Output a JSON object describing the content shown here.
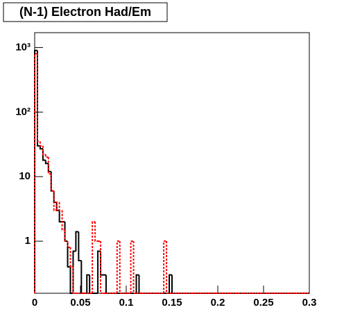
{
  "chart_data": {
    "type": "histogram",
    "title": "(N-1) Electron Had/Em",
    "log_y": true,
    "bins": [
      0,
      0.003,
      0.006,
      0.009,
      0.012,
      0.015,
      0.018,
      0.021,
      0.024,
      0.027,
      0.03,
      0.033,
      0.036,
      0.039,
      0.042,
      0.045,
      0.048,
      0.051,
      0.054,
      0.057,
      0.06,
      0.063,
      0.066,
      0.069,
      0.072,
      0.075,
      0.078,
      0.081,
      0.084,
      0.087,
      0.09,
      0.093,
      0.096,
      0.099,
      0.102,
      0.105,
      0.108,
      0.111,
      0.114,
      0.117,
      0.12,
      0.123,
      0.126,
      0.129,
      0.132,
      0.135,
      0.138,
      0.141,
      0.144,
      0.147,
      0.15,
      0.153,
      0.156,
      0.159,
      0.162,
      0.165,
      0.168,
      0.171,
      0.174,
      0.177,
      0.18,
      0.183,
      0.186,
      0.189,
      0.192,
      0.195,
      0.198,
      0.201,
      0.204,
      0.207,
      0.21,
      0.213,
      0.216,
      0.219,
      0.222,
      0.225,
      0.228,
      0.231,
      0.234,
      0.237,
      0.24,
      0.243,
      0.246,
      0.249,
      0.252,
      0.255,
      0.258,
      0.261,
      0.264,
      0.267,
      0.27,
      0.273,
      0.276,
      0.279,
      0.282,
      0.285,
      0.288,
      0.291,
      0.294,
      0.297,
      0.3
    ],
    "series": [
      {
        "color": "#000000",
        "line_style": "solid",
        "values": [
          900,
          30,
          27,
          18,
          16,
          12,
          6,
          4,
          3,
          2,
          2,
          1,
          0.4,
          0,
          0.7,
          1.4,
          0.5,
          0,
          0,
          0.3,
          0,
          0,
          0,
          0.7,
          0.3,
          0.3,
          0,
          0,
          0,
          0,
          0,
          0,
          0,
          0,
          0,
          0,
          0,
          0.3,
          0,
          0,
          0,
          0,
          0,
          0,
          0,
          0,
          0,
          0,
          0,
          0.3,
          0,
          0,
          0,
          0,
          0,
          0,
          0,
          0,
          0,
          0,
          0,
          0,
          0,
          0,
          0,
          0,
          0,
          0,
          0,
          0,
          0,
          0,
          0,
          0,
          0,
          0,
          0,
          0,
          0,
          0,
          0,
          0,
          0,
          0,
          0,
          0,
          0,
          0,
          0,
          0,
          0,
          0,
          0,
          0,
          0,
          0,
          0,
          0,
          0,
          0
        ]
      },
      {
        "color": "#ff0000",
        "line_style": "dashed",
        "values": [
          800,
          35,
          30,
          22,
          20,
          11,
          6,
          3,
          4,
          3,
          1.5,
          1,
          0.8,
          0.4,
          0,
          0,
          0,
          0,
          0,
          0,
          0,
          2,
          1,
          1,
          0,
          0,
          0,
          0,
          0,
          0,
          1,
          0,
          0,
          0,
          0,
          1,
          0,
          0,
          0,
          0,
          0,
          0,
          0,
          0,
          0,
          0,
          0,
          1,
          0,
          0,
          0,
          0,
          0,
          0,
          0,
          0,
          0,
          0,
          0,
          0,
          0,
          0,
          0,
          0,
          0,
          0,
          0,
          0,
          0,
          0,
          0,
          0,
          0,
          0,
          0,
          0,
          0,
          0,
          0,
          0,
          0,
          0,
          0,
          0,
          0,
          0,
          0,
          0,
          0,
          0,
          0,
          0,
          0,
          0,
          0,
          0,
          0,
          0,
          0,
          0
        ]
      }
    ],
    "xlim": [
      0,
      0.3
    ],
    "xticks": [
      0,
      0.05,
      0.1,
      0.15,
      0.2,
      0.25,
      0.3
    ],
    "ylim": [
      0.156,
      1700
    ],
    "yticks": [
      {
        "value": 1,
        "label": "1"
      },
      {
        "value": 10,
        "label": "10"
      },
      {
        "value": 100,
        "label": "10²"
      },
      {
        "value": 1000,
        "label": "10³"
      }
    ]
  }
}
